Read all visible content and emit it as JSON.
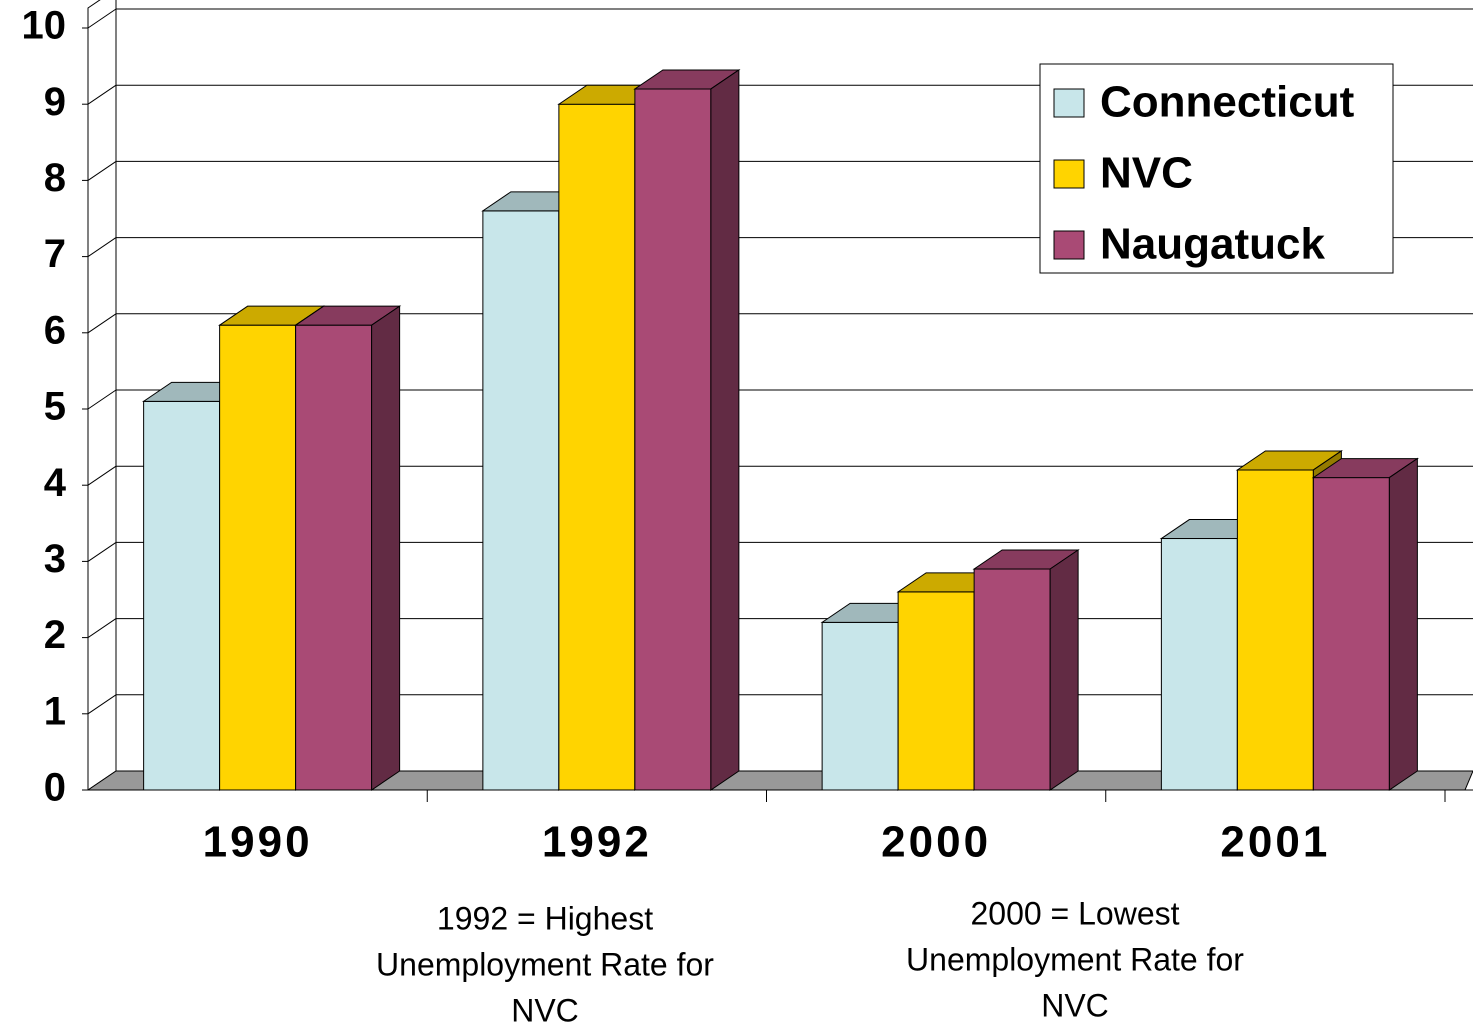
{
  "chart_data": {
    "type": "bar3d",
    "categories": [
      "1990",
      "1992",
      "2000",
      "2001"
    ],
    "series": [
      {
        "name": "Connecticut",
        "color": "#c8e6ea",
        "values": [
          5.1,
          7.6,
          2.2,
          3.3
        ]
      },
      {
        "name": "NVC",
        "color": "#ffd400",
        "values": [
          6.1,
          9.0,
          2.6,
          4.2
        ]
      },
      {
        "name": "Naugatuck",
        "color": "#a94a75",
        "values": [
          6.1,
          9.2,
          2.9,
          4.1
        ]
      }
    ],
    "ylim": [
      0,
      10
    ],
    "yticks": [
      0,
      1,
      2,
      3,
      4,
      5,
      6,
      7,
      8,
      9,
      10
    ],
    "grid": true,
    "legend": "top-right",
    "annotations": [
      [
        "1992 = Highest",
        "Unemployment Rate for",
        "NVC"
      ],
      [
        "2000 = Lowest",
        "Unemployment Rate for",
        "NVC"
      ]
    ]
  }
}
